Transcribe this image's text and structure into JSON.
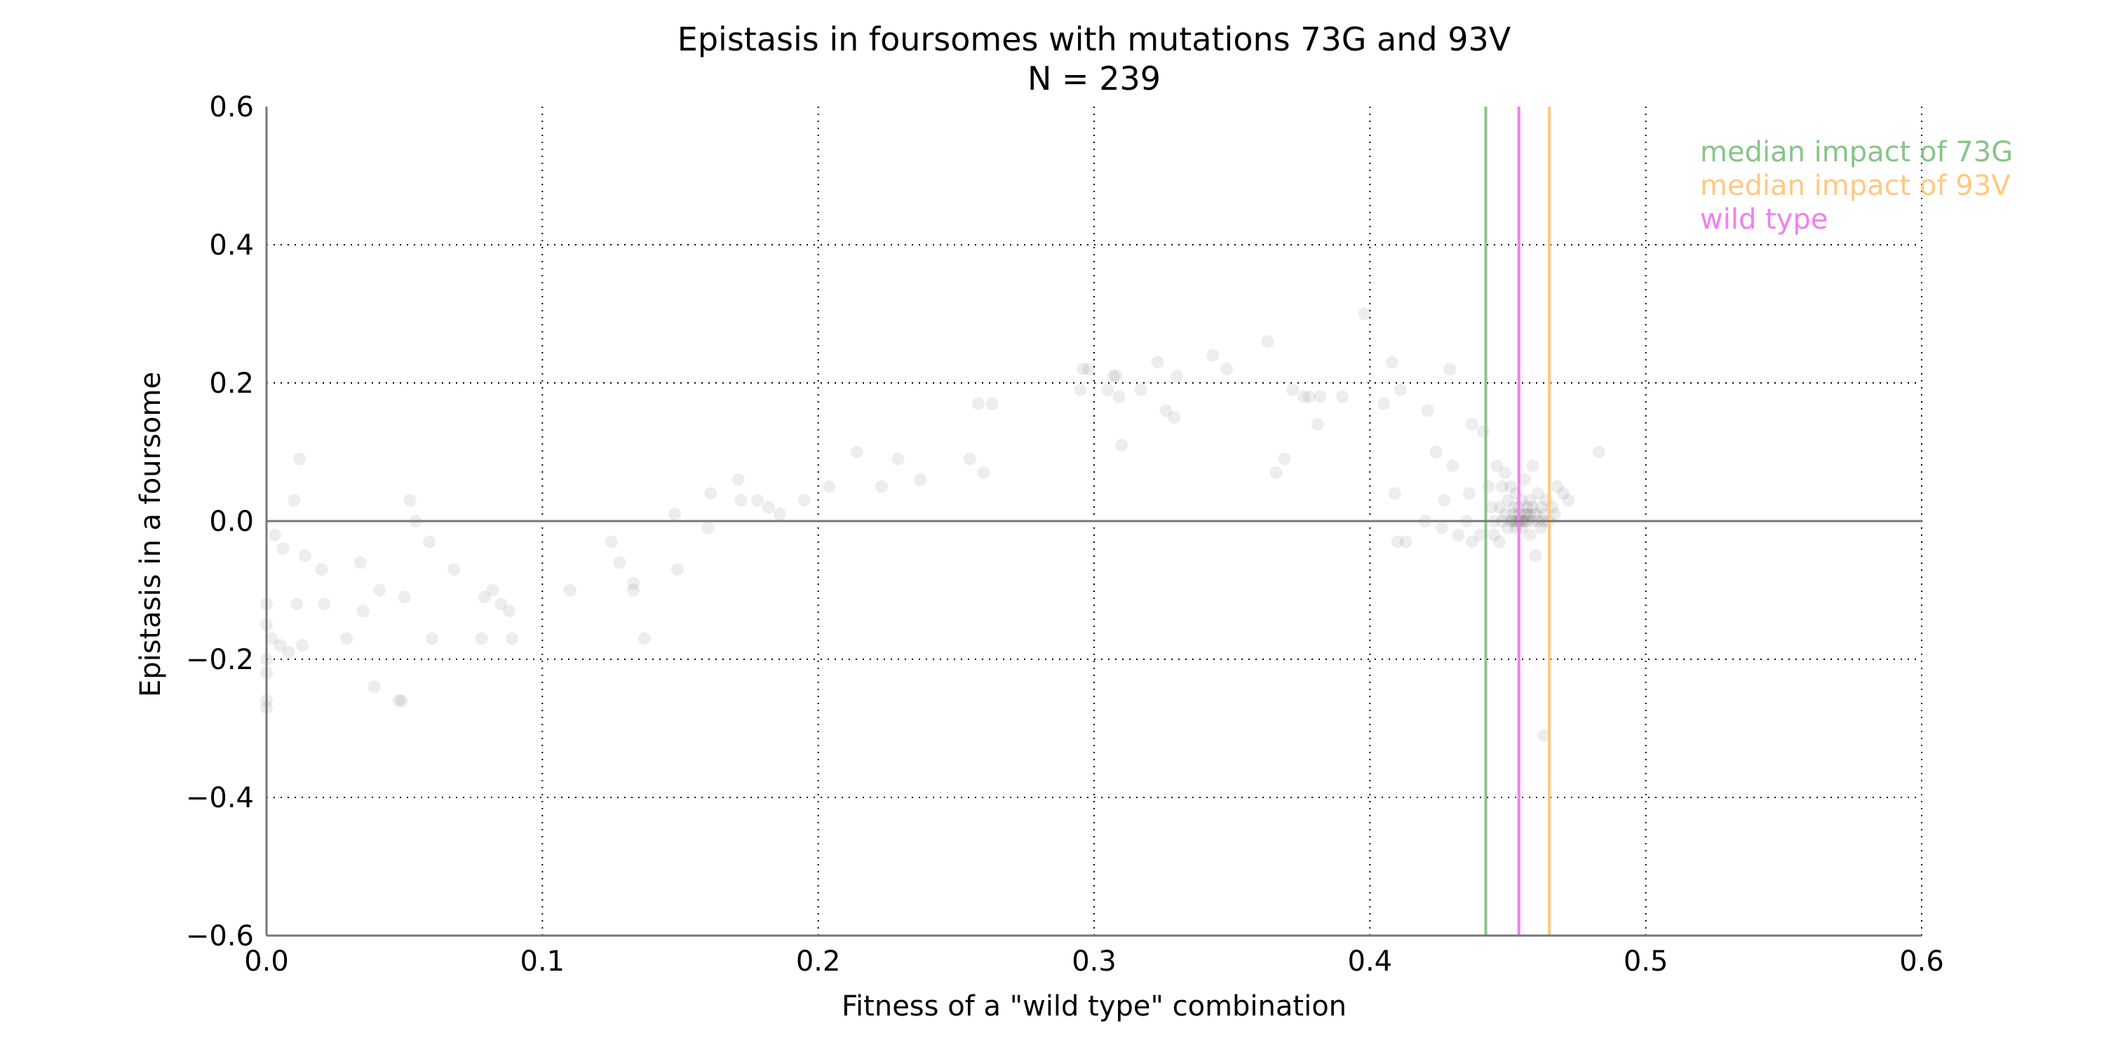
{
  "chart_data": {
    "type": "scatter",
    "title": "Epistasis in foursomes with mutations 73G and 93V",
    "subtitle": "N = 239",
    "xlabel": "Fitness of a \"wild type\" combination",
    "ylabel": "Epistasis in a foursome",
    "xlim": [
      0.0,
      0.6
    ],
    "ylim": [
      -0.6,
      0.6
    ],
    "x_ticks": [
      "0.0",
      "0.1",
      "0.2",
      "0.3",
      "0.4",
      "0.5",
      "0.6"
    ],
    "y_ticks": [
      "−0.6",
      "−0.4",
      "−0.2",
      "0.0",
      "0.2",
      "0.4",
      "0.6"
    ],
    "x_tick_values": [
      0.0,
      0.1,
      0.2,
      0.3,
      0.4,
      0.5,
      0.6
    ],
    "y_tick_values": [
      -0.6,
      -0.4,
      -0.2,
      0.0,
      0.2,
      0.4,
      0.6
    ],
    "grid": true,
    "point_color": "#000000",
    "point_opacity": 0.07,
    "vlines": [
      {
        "label": "median impact of 73G",
        "x": 0.442,
        "color": "#88c488"
      },
      {
        "label": "median impact of 93V",
        "x": 0.465,
        "color": "#ffc880"
      },
      {
        "label": "wild type",
        "x": 0.454,
        "color": "#f27ef2"
      }
    ],
    "legend_position": "top-right",
    "points": [
      [
        0.0,
        -0.12
      ],
      [
        0.0,
        -0.15
      ],
      [
        0.0,
        -0.2
      ],
      [
        0.0,
        -0.22
      ],
      [
        0.0,
        -0.26
      ],
      [
        0.0,
        -0.27
      ],
      [
        0.002,
        -0.17
      ],
      [
        0.003,
        -0.02
      ],
      [
        0.005,
        -0.18
      ],
      [
        0.006,
        -0.04
      ],
      [
        0.008,
        -0.19
      ],
      [
        0.01,
        0.03
      ],
      [
        0.011,
        -0.12
      ],
      [
        0.012,
        0.09
      ],
      [
        0.013,
        -0.18
      ],
      [
        0.014,
        -0.05
      ],
      [
        0.02,
        -0.07
      ],
      [
        0.021,
        -0.12
      ],
      [
        0.029,
        -0.17
      ],
      [
        0.034,
        -0.06
      ],
      [
        0.035,
        -0.13
      ],
      [
        0.039,
        -0.24
      ],
      [
        0.041,
        -0.1
      ],
      [
        0.048,
        -0.26
      ],
      [
        0.049,
        -0.26
      ],
      [
        0.05,
        -0.11
      ],
      [
        0.052,
        0.03
      ],
      [
        0.054,
        0.0
      ],
      [
        0.059,
        -0.03
      ],
      [
        0.06,
        -0.17
      ],
      [
        0.068,
        -0.07
      ],
      [
        0.078,
        -0.17
      ],
      [
        0.079,
        -0.11
      ],
      [
        0.082,
        -0.1
      ],
      [
        0.085,
        -0.12
      ],
      [
        0.088,
        -0.13
      ],
      [
        0.089,
        -0.17
      ],
      [
        0.11,
        -0.1
      ],
      [
        0.125,
        -0.03
      ],
      [
        0.128,
        -0.06
      ],
      [
        0.133,
        -0.09
      ],
      [
        0.133,
        -0.1
      ],
      [
        0.137,
        -0.17
      ],
      [
        0.148,
        0.01
      ],
      [
        0.149,
        -0.07
      ],
      [
        0.16,
        -0.01
      ],
      [
        0.161,
        0.04
      ],
      [
        0.171,
        0.06
      ],
      [
        0.172,
        0.03
      ],
      [
        0.178,
        0.03
      ],
      [
        0.182,
        0.02
      ],
      [
        0.186,
        0.01
      ],
      [
        0.195,
        0.03
      ],
      [
        0.204,
        0.05
      ],
      [
        0.214,
        0.1
      ],
      [
        0.223,
        0.05
      ],
      [
        0.229,
        0.09
      ],
      [
        0.237,
        0.06
      ],
      [
        0.255,
        0.09
      ],
      [
        0.258,
        0.17
      ],
      [
        0.26,
        0.07
      ],
      [
        0.263,
        0.17
      ],
      [
        0.295,
        0.19
      ],
      [
        0.296,
        0.22
      ],
      [
        0.298,
        0.22
      ],
      [
        0.305,
        0.19
      ],
      [
        0.307,
        0.21
      ],
      [
        0.308,
        0.21
      ],
      [
        0.309,
        0.18
      ],
      [
        0.31,
        0.11
      ],
      [
        0.317,
        0.19
      ],
      [
        0.323,
        0.23
      ],
      [
        0.326,
        0.16
      ],
      [
        0.329,
        0.15
      ],
      [
        0.33,
        0.21
      ],
      [
        0.343,
        0.24
      ],
      [
        0.348,
        0.22
      ],
      [
        0.363,
        0.26
      ],
      [
        0.366,
        0.07
      ],
      [
        0.369,
        0.09
      ],
      [
        0.372,
        0.19
      ],
      [
        0.376,
        0.18
      ],
      [
        0.378,
        0.18
      ],
      [
        0.381,
        0.14
      ],
      [
        0.382,
        0.18
      ],
      [
        0.39,
        0.18
      ],
      [
        0.398,
        0.3
      ],
      [
        0.405,
        0.17
      ],
      [
        0.408,
        0.23
      ],
      [
        0.409,
        0.04
      ],
      [
        0.41,
        -0.03
      ],
      [
        0.411,
        0.19
      ],
      [
        0.413,
        -0.03
      ],
      [
        0.42,
        0.0
      ],
      [
        0.421,
        0.16
      ],
      [
        0.424,
        0.1
      ],
      [
        0.426,
        -0.01
      ],
      [
        0.427,
        0.03
      ],
      [
        0.429,
        0.22
      ],
      [
        0.43,
        0.08
      ],
      [
        0.432,
        -0.02
      ],
      [
        0.435,
        0.0
      ],
      [
        0.436,
        0.04
      ],
      [
        0.437,
        0.14
      ],
      [
        0.437,
        -0.03
      ],
      [
        0.44,
        -0.02
      ],
      [
        0.441,
        0.13
      ],
      [
        0.443,
        0.05
      ],
      [
        0.444,
        0.02
      ],
      [
        0.445,
        -0.02
      ],
      [
        0.445,
        0.0
      ],
      [
        0.446,
        0.08
      ],
      [
        0.447,
        -0.03
      ],
      [
        0.447,
        0.02
      ],
      [
        0.448,
        0.0
      ],
      [
        0.448,
        0.05
      ],
      [
        0.449,
        0.07
      ],
      [
        0.449,
        0.01
      ],
      [
        0.45,
        -0.01
      ],
      [
        0.45,
        0.03
      ],
      [
        0.451,
        0.0
      ],
      [
        0.451,
        0.05
      ],
      [
        0.452,
        0.0
      ],
      [
        0.452,
        0.01
      ],
      [
        0.452,
        0.02
      ],
      [
        0.453,
        0.04
      ],
      [
        0.453,
        -0.01
      ],
      [
        0.453,
        0.0
      ],
      [
        0.454,
        0.01
      ],
      [
        0.454,
        0.0
      ],
      [
        0.454,
        0.02
      ],
      [
        0.455,
        -0.01
      ],
      [
        0.455,
        0.03
      ],
      [
        0.455,
        0.0
      ],
      [
        0.456,
        0.01
      ],
      [
        0.456,
        0.06
      ],
      [
        0.456,
        0.0
      ],
      [
        0.457,
        0.02
      ],
      [
        0.457,
        0.01
      ],
      [
        0.457,
        0.0
      ],
      [
        0.458,
        0.03
      ],
      [
        0.458,
        0.01
      ],
      [
        0.458,
        -0.02
      ],
      [
        0.459,
        0.08
      ],
      [
        0.459,
        0.0
      ],
      [
        0.459,
        0.02
      ],
      [
        0.46,
        -0.05
      ],
      [
        0.46,
        0.01
      ],
      [
        0.461,
        0.0
      ],
      [
        0.461,
        0.04
      ],
      [
        0.462,
        0.02
      ],
      [
        0.462,
        -0.01
      ],
      [
        0.463,
        0.0
      ],
      [
        0.463,
        0.01
      ],
      [
        0.463,
        -0.31
      ],
      [
        0.464,
        0.03
      ],
      [
        0.465,
        0.0
      ],
      [
        0.466,
        0.02
      ],
      [
        0.467,
        0.01
      ],
      [
        0.468,
        0.05
      ],
      [
        0.47,
        0.04
      ],
      [
        0.472,
        0.03
      ],
      [
        0.483,
        0.1
      ]
    ]
  }
}
